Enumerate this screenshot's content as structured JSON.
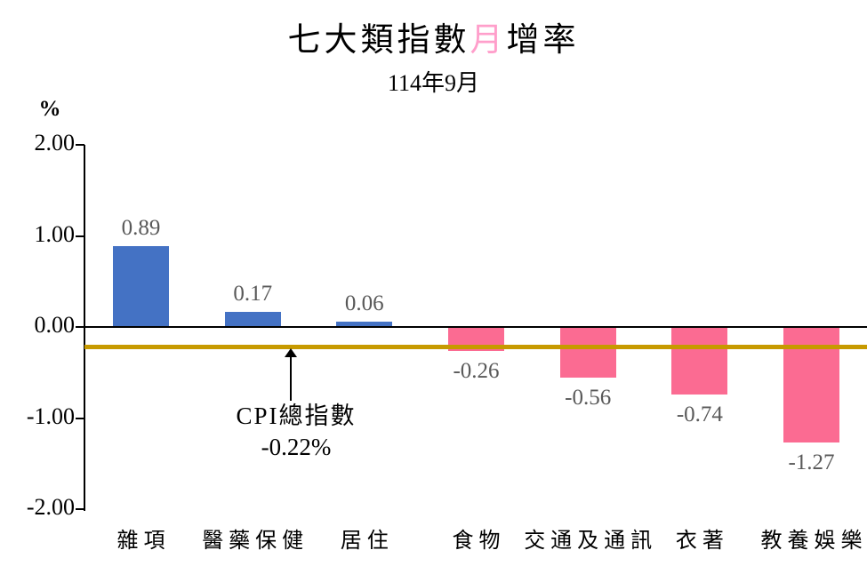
{
  "header": {
    "title_prefix": "七大類指數",
    "title_highlight": "月",
    "title_suffix": "增率",
    "highlight_color": "#FF9FCB",
    "subtitle": "114年9月"
  },
  "chart_data": {
    "type": "bar",
    "title": "七大類指數月增率",
    "subtitle": "114年9月",
    "unit_label": "%",
    "categories": [
      "雜項",
      "醫藥保健",
      "居住",
      "食物",
      "交通及通訊",
      "衣著",
      "教養娛樂"
    ],
    "values": [
      0.89,
      0.17,
      0.06,
      -0.26,
      -0.56,
      -0.74,
      -1.27
    ],
    "value_labels": [
      "0.89",
      "0.17",
      "0.06",
      "-0.26",
      "-0.56",
      "-0.74",
      "-1.27"
    ],
    "ylim": [
      -2.0,
      2.0
    ],
    "yticks": [
      2.0,
      1.0,
      0.0,
      -1.0,
      -2.0
    ],
    "ytick_labels": [
      "2.00",
      "1.00",
      "0.00",
      "-1.00",
      "-2.00"
    ],
    "grid": false,
    "legend": "none",
    "positive_color": "#4472C4",
    "negative_color": "#FB6B92",
    "value_label_color": "#595959",
    "reference_line": {
      "value": -0.22,
      "color": "#C79A00",
      "label_line1": "CPI總指數",
      "label_line2": "-0.22%"
    }
  }
}
